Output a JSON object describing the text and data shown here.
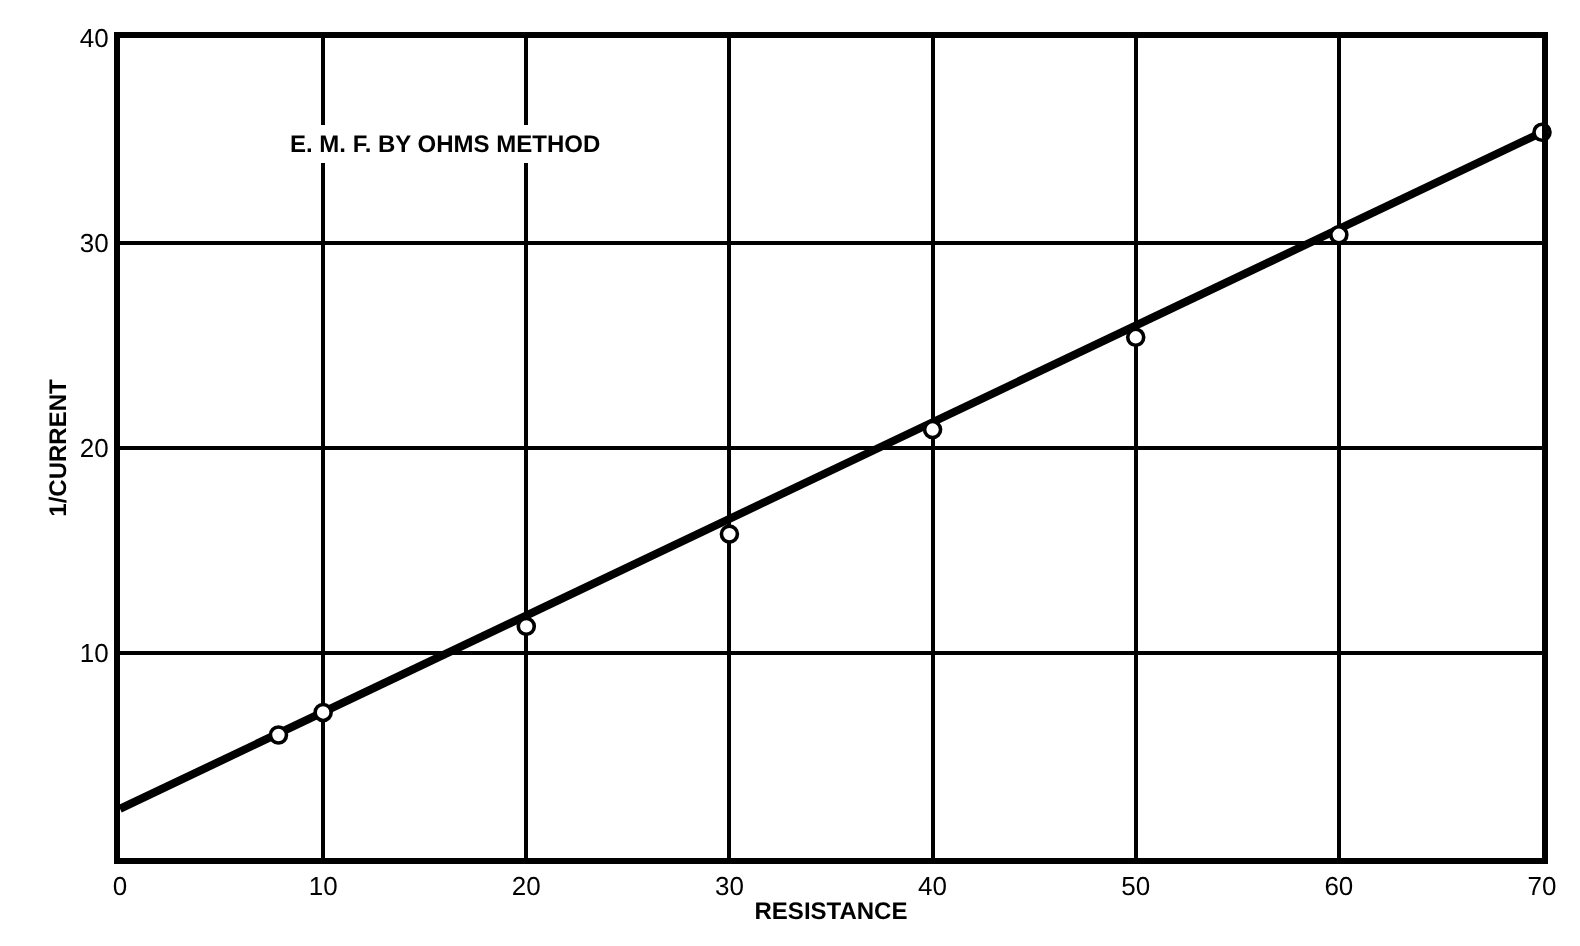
{
  "chart_data": {
    "type": "scatter",
    "title": "E. M. F. BY OHMS METHOD",
    "xlabel": "RESISTANCE",
    "ylabel": "1/CURRENT",
    "series": [
      {
        "type": "line",
        "color": "#000000",
        "x": [
          0,
          70
        ],
        "values": [
          2.4,
          35.4
        ],
        "marker": "none",
        "line_style": "solid"
      },
      {
        "color": "#000000",
        "x": [
          7.8,
          10,
          20,
          30,
          40,
          50,
          60,
          70
        ],
        "values": [
          6.0,
          7.1,
          11.3,
          15.8,
          20.9,
          25.4,
          30.4,
          35.4
        ],
        "marker": "circle"
      }
    ],
    "xlim": [
      0,
      70
    ],
    "xticks": [
      0,
      10,
      20,
      30,
      40,
      50,
      60,
      70
    ],
    "ylim": [
      0,
      40
    ],
    "yticks": [
      10,
      20,
      30,
      40
    ],
    "grid": true
  }
}
